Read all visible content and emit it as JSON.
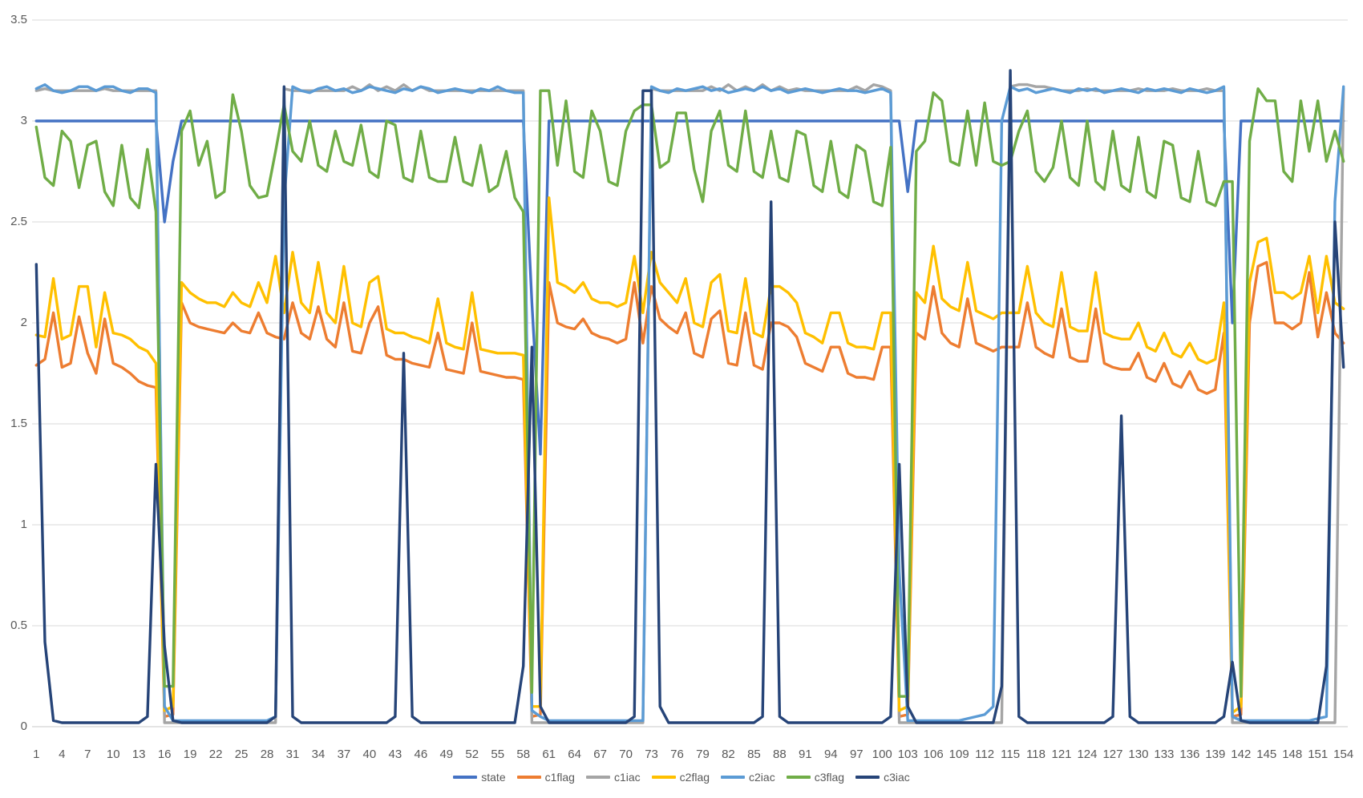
{
  "chart_data": {
    "type": "line",
    "title": "",
    "xlabel": "",
    "ylabel": "",
    "ylim": [
      0,
      3.5
    ],
    "y_ticks": [
      0,
      0.5,
      1,
      1.5,
      2,
      2.5,
      3,
      3.5
    ],
    "x_count": 154,
    "x_label_start": 1,
    "x_label_interval": 3,
    "grid": true,
    "legend_position": "bottom",
    "gridline_color": "#D9D9D9",
    "axis_text_color": "#595959",
    "series": [
      {
        "name": "state",
        "color": "#4472C4",
        "values": [
          3,
          3,
          3,
          3,
          3,
          3,
          3,
          3,
          3,
          3,
          3,
          3,
          3,
          3,
          3,
          2.5,
          2.8,
          3,
          3,
          3,
          3,
          3,
          3,
          3,
          3,
          3,
          3,
          3,
          3,
          3,
          3,
          3,
          3,
          3,
          3,
          3,
          3,
          3,
          3,
          3,
          3,
          3,
          3,
          3,
          3,
          3,
          3,
          3,
          3,
          3,
          3,
          3,
          3,
          3,
          3,
          3,
          3,
          3,
          2.1,
          1.35,
          3,
          3,
          3,
          3,
          3,
          3,
          3,
          3,
          3,
          3,
          3,
          3,
          3,
          3,
          3,
          3,
          3,
          3,
          3,
          3,
          3,
          3,
          3,
          3,
          3,
          3,
          3,
          3,
          3,
          3,
          3,
          3,
          3,
          3,
          3,
          3,
          3,
          3,
          3,
          3,
          3,
          3,
          2.65,
          3,
          3,
          3,
          3,
          3,
          3,
          3,
          3,
          3,
          3,
          3,
          3,
          3,
          3,
          3,
          3,
          3,
          3,
          3,
          3,
          3,
          3,
          3,
          3,
          3,
          3,
          3,
          3,
          3,
          3,
          3,
          3,
          3,
          3,
          3,
          3,
          3,
          2.0,
          3,
          3,
          3,
          3,
          3,
          3,
          3,
          3,
          3,
          3,
          3,
          3,
          3
        ]
      },
      {
        "name": "c1flag",
        "color": "#ED7D31",
        "values": [
          1.79,
          1.82,
          2.05,
          1.78,
          1.8,
          2.03,
          1.85,
          1.75,
          2.02,
          1.8,
          1.78,
          1.75,
          1.71,
          1.69,
          1.68,
          0.05,
          0.06,
          2.1,
          2.0,
          1.98,
          1.97,
          1.96,
          1.95,
          2.0,
          1.96,
          1.95,
          2.05,
          1.95,
          1.93,
          1.92,
          2.1,
          1.95,
          1.92,
          2.08,
          1.92,
          1.88,
          2.1,
          1.86,
          1.85,
          2.0,
          2.08,
          1.84,
          1.82,
          1.82,
          1.8,
          1.79,
          1.78,
          1.95,
          1.77,
          1.76,
          1.75,
          2.0,
          1.76,
          1.75,
          1.74,
          1.73,
          1.73,
          1.72,
          0.05,
          0.06,
          2.2,
          2.0,
          1.98,
          1.97,
          2.02,
          1.95,
          1.93,
          1.92,
          1.9,
          1.92,
          2.2,
          1.9,
          2.18,
          2.02,
          1.98,
          1.95,
          2.05,
          1.85,
          1.83,
          2.02,
          2.06,
          1.8,
          1.79,
          2.05,
          1.79,
          1.77,
          2.0,
          2.0,
          1.98,
          1.93,
          1.8,
          1.78,
          1.76,
          1.88,
          1.88,
          1.75,
          1.73,
          1.73,
          1.72,
          1.88,
          1.88,
          0.05,
          0.06,
          1.95,
          1.92,
          2.18,
          1.95,
          1.9,
          1.88,
          2.12,
          1.9,
          1.88,
          1.86,
          1.88,
          1.88,
          1.88,
          2.1,
          1.88,
          1.85,
          1.83,
          2.07,
          1.83,
          1.81,
          1.81,
          2.07,
          1.8,
          1.78,
          1.77,
          1.77,
          1.85,
          1.73,
          1.71,
          1.8,
          1.7,
          1.68,
          1.76,
          1.67,
          1.65,
          1.67,
          1.95,
          0.05,
          0.06,
          2.0,
          2.28,
          2.3,
          2.0,
          2.0,
          1.97,
          2.0,
          2.25,
          1.93,
          2.15,
          1.95,
          1.9
        ]
      },
      {
        "name": "c1iac",
        "color": "#A5A5A5",
        "values": [
          3.15,
          3.16,
          3.15,
          3.15,
          3.15,
          3.15,
          3.15,
          3.15,
          3.16,
          3.15,
          3.15,
          3.15,
          3.15,
          3.15,
          3.15,
          0.02,
          0.02,
          0.02,
          0.02,
          0.02,
          0.02,
          0.02,
          0.02,
          0.02,
          0.02,
          0.02,
          0.02,
          0.02,
          0.02,
          3.16,
          3.15,
          3.15,
          3.15,
          3.15,
          3.15,
          3.15,
          3.15,
          3.17,
          3.15,
          3.18,
          3.15,
          3.17,
          3.15,
          3.18,
          3.15,
          3.17,
          3.15,
          3.15,
          3.15,
          3.15,
          3.15,
          3.15,
          3.15,
          3.15,
          3.15,
          3.15,
          3.15,
          3.15,
          0.02,
          0.02,
          0.02,
          0.02,
          0.02,
          0.02,
          0.02,
          0.02,
          0.02,
          0.02,
          0.02,
          0.02,
          0.02,
          0.02,
          3.16,
          3.15,
          3.15,
          3.15,
          3.15,
          3.15,
          3.15,
          3.17,
          3.15,
          3.18,
          3.15,
          3.17,
          3.15,
          3.18,
          3.15,
          3.17,
          3.15,
          3.16,
          3.15,
          3.15,
          3.15,
          3.15,
          3.15,
          3.15,
          3.17,
          3.15,
          3.18,
          3.17,
          3.15,
          0.02,
          0.02,
          0.02,
          0.02,
          0.02,
          0.02,
          0.02,
          0.02,
          0.02,
          0.02,
          0.02,
          0.02,
          0.02,
          3.17,
          3.18,
          3.18,
          3.17,
          3.17,
          3.16,
          3.15,
          3.15,
          3.15,
          3.16,
          3.15,
          3.15,
          3.15,
          3.15,
          3.15,
          3.16,
          3.15,
          3.15,
          3.15,
          3.16,
          3.15,
          3.15,
          3.15,
          3.16,
          3.15,
          3.15,
          0.02,
          0.02,
          0.02,
          0.02,
          0.02,
          0.02,
          0.02,
          0.02,
          0.02,
          0.02,
          0.02,
          0.02,
          0.02,
          3.16
        ]
      },
      {
        "name": "c2flag",
        "color": "#FFC000",
        "values": [
          1.94,
          1.93,
          2.22,
          1.92,
          1.94,
          2.18,
          2.18,
          1.88,
          2.15,
          1.95,
          1.94,
          1.92,
          1.88,
          1.86,
          1.8,
          0.08,
          0.1,
          2.2,
          2.15,
          2.12,
          2.1,
          2.1,
          2.08,
          2.15,
          2.1,
          2.08,
          2.2,
          2.1,
          2.33,
          2.05,
          2.35,
          2.1,
          2.05,
          2.3,
          2.05,
          2.0,
          2.28,
          2.0,
          1.98,
          2.2,
          2.23,
          1.97,
          1.95,
          1.95,
          1.93,
          1.92,
          1.9,
          2.12,
          1.9,
          1.88,
          1.87,
          2.15,
          1.87,
          1.86,
          1.85,
          1.85,
          1.85,
          1.84,
          0.1,
          0.1,
          2.62,
          2.2,
          2.18,
          2.15,
          2.2,
          2.12,
          2.1,
          2.1,
          2.08,
          2.1,
          2.33,
          2.05,
          2.35,
          2.2,
          2.15,
          2.1,
          2.22,
          2.0,
          1.98,
          2.2,
          2.24,
          1.96,
          1.95,
          2.22,
          1.95,
          1.93,
          2.18,
          2.18,
          2.15,
          2.1,
          1.95,
          1.93,
          1.9,
          2.05,
          2.05,
          1.9,
          1.88,
          1.88,
          1.87,
          2.05,
          2.05,
          0.08,
          0.1,
          2.15,
          2.1,
          2.38,
          2.12,
          2.08,
          2.06,
          2.3,
          2.06,
          2.04,
          2.02,
          2.05,
          2.05,
          2.05,
          2.28,
          2.05,
          2.0,
          1.98,
          2.25,
          1.98,
          1.96,
          1.96,
          2.25,
          1.95,
          1.93,
          1.92,
          1.92,
          2.0,
          1.88,
          1.86,
          1.95,
          1.85,
          1.83,
          1.9,
          1.82,
          1.8,
          1.82,
          2.1,
          0.07,
          0.1,
          2.2,
          2.4,
          2.42,
          2.15,
          2.15,
          2.12,
          2.15,
          2.33,
          2.05,
          2.33,
          2.1,
          2.07
        ]
      },
      {
        "name": "c2iac",
        "color": "#5B9BD5",
        "values": [
          3.16,
          3.18,
          3.15,
          3.14,
          3.15,
          3.17,
          3.17,
          3.15,
          3.17,
          3.17,
          3.15,
          3.14,
          3.16,
          3.16,
          3.14,
          0.1,
          0.03,
          0.03,
          0.03,
          0.03,
          0.03,
          0.03,
          0.03,
          0.03,
          0.03,
          0.03,
          0.03,
          0.03,
          0.05,
          2.6,
          3.17,
          3.15,
          3.14,
          3.16,
          3.17,
          3.15,
          3.16,
          3.14,
          3.15,
          3.17,
          3.16,
          3.15,
          3.14,
          3.16,
          3.15,
          3.17,
          3.16,
          3.14,
          3.15,
          3.16,
          3.15,
          3.14,
          3.16,
          3.15,
          3.17,
          3.15,
          3.14,
          3.14,
          0.08,
          0.05,
          0.03,
          0.03,
          0.03,
          0.03,
          0.03,
          0.03,
          0.03,
          0.03,
          0.03,
          0.03,
          0.03,
          0.03,
          3.17,
          3.15,
          3.14,
          3.16,
          3.15,
          3.16,
          3.17,
          3.15,
          3.16,
          3.14,
          3.15,
          3.16,
          3.15,
          3.17,
          3.15,
          3.16,
          3.14,
          3.15,
          3.16,
          3.15,
          3.14,
          3.15,
          3.16,
          3.15,
          3.15,
          3.14,
          3.15,
          3.16,
          3.14,
          0.77,
          0.03,
          0.03,
          0.03,
          0.03,
          0.03,
          0.03,
          0.03,
          0.04,
          0.05,
          0.06,
          0.1,
          3.0,
          3.17,
          3.15,
          3.16,
          3.14,
          3.15,
          3.16,
          3.15,
          3.14,
          3.16,
          3.15,
          3.16,
          3.14,
          3.15,
          3.16,
          3.15,
          3.14,
          3.16,
          3.15,
          3.16,
          3.15,
          3.14,
          3.16,
          3.15,
          3.14,
          3.15,
          3.17,
          0.05,
          0.03,
          0.03,
          0.03,
          0.03,
          0.03,
          0.03,
          0.03,
          0.03,
          0.03,
          0.04,
          0.05,
          2.6,
          3.17
        ]
      },
      {
        "name": "c3flag",
        "color": "#70AD47",
        "values": [
          2.97,
          2.72,
          2.68,
          2.95,
          2.9,
          2.67,
          2.88,
          2.9,
          2.65,
          2.58,
          2.88,
          2.62,
          2.57,
          2.86,
          2.55,
          0.2,
          0.2,
          2.95,
          3.05,
          2.78,
          2.9,
          2.62,
          2.65,
          3.13,
          2.95,
          2.68,
          2.62,
          2.63,
          2.85,
          3.08,
          2.85,
          2.8,
          3.0,
          2.78,
          2.75,
          2.95,
          2.8,
          2.78,
          2.98,
          2.75,
          2.72,
          3.0,
          2.98,
          2.72,
          2.7,
          2.95,
          2.72,
          2.7,
          2.7,
          2.92,
          2.7,
          2.68,
          2.88,
          2.65,
          2.68,
          2.85,
          2.62,
          2.55,
          0.17,
          3.15,
          3.15,
          2.78,
          3.1,
          2.75,
          2.72,
          3.05,
          2.95,
          2.7,
          2.68,
          2.95,
          3.05,
          3.08,
          3.08,
          2.77,
          2.8,
          3.04,
          3.04,
          2.76,
          2.6,
          2.95,
          3.05,
          2.78,
          2.75,
          3.05,
          2.75,
          2.72,
          2.95,
          2.72,
          2.7,
          2.95,
          2.93,
          2.68,
          2.65,
          2.9,
          2.65,
          2.62,
          2.88,
          2.85,
          2.6,
          2.58,
          2.87,
          0.15,
          0.15,
          2.85,
          2.9,
          3.14,
          3.1,
          2.8,
          2.78,
          3.05,
          2.78,
          3.09,
          2.8,
          2.78,
          2.8,
          2.95,
          3.05,
          2.75,
          2.7,
          2.77,
          3.0,
          2.72,
          2.68,
          3.0,
          2.7,
          2.66,
          2.95,
          2.68,
          2.65,
          2.92,
          2.65,
          2.62,
          2.9,
          2.88,
          2.62,
          2.6,
          2.85,
          2.6,
          2.58,
          2.7,
          2.7,
          0.15,
          2.9,
          3.16,
          3.1,
          3.1,
          2.75,
          2.7,
          3.1,
          2.85,
          3.1,
          2.8,
          2.95,
          2.8
        ]
      },
      {
        "name": "c3iac",
        "color": "#264478",
        "values": [
          2.29,
          0.42,
          0.03,
          0.02,
          0.02,
          0.02,
          0.02,
          0.02,
          0.02,
          0.02,
          0.02,
          0.02,
          0.02,
          0.05,
          1.3,
          0.4,
          0.03,
          0.02,
          0.02,
          0.02,
          0.02,
          0.02,
          0.02,
          0.02,
          0.02,
          0.02,
          0.02,
          0.02,
          0.05,
          3.17,
          0.05,
          0.02,
          0.02,
          0.02,
          0.02,
          0.02,
          0.02,
          0.02,
          0.02,
          0.02,
          0.02,
          0.02,
          0.05,
          1.85,
          0.05,
          0.02,
          0.02,
          0.02,
          0.02,
          0.02,
          0.02,
          0.02,
          0.02,
          0.02,
          0.02,
          0.02,
          0.02,
          0.3,
          1.88,
          0.1,
          0.02,
          0.02,
          0.02,
          0.02,
          0.02,
          0.02,
          0.02,
          0.02,
          0.02,
          0.02,
          0.05,
          3.15,
          3.15,
          0.1,
          0.02,
          0.02,
          0.02,
          0.02,
          0.02,
          0.02,
          0.02,
          0.02,
          0.02,
          0.02,
          0.02,
          0.05,
          2.6,
          0.05,
          0.02,
          0.02,
          0.02,
          0.02,
          0.02,
          0.02,
          0.02,
          0.02,
          0.02,
          0.02,
          0.02,
          0.02,
          0.05,
          1.3,
          0.1,
          0.02,
          0.02,
          0.02,
          0.02,
          0.02,
          0.02,
          0.02,
          0.02,
          0.02,
          0.02,
          0.2,
          3.25,
          0.05,
          0.02,
          0.02,
          0.02,
          0.02,
          0.02,
          0.02,
          0.02,
          0.02,
          0.02,
          0.02,
          0.05,
          1.54,
          0.05,
          0.02,
          0.02,
          0.02,
          0.02,
          0.02,
          0.02,
          0.02,
          0.02,
          0.02,
          0.02,
          0.05,
          0.32,
          0.03,
          0.02,
          0.02,
          0.02,
          0.02,
          0.02,
          0.02,
          0.02,
          0.02,
          0.02,
          0.3,
          2.5,
          1.78
        ]
      }
    ]
  },
  "legend": {
    "items": [
      "state",
      "c1flag",
      "c1iac",
      "c2flag",
      "c2iac",
      "c3flag",
      "c3iac"
    ]
  }
}
